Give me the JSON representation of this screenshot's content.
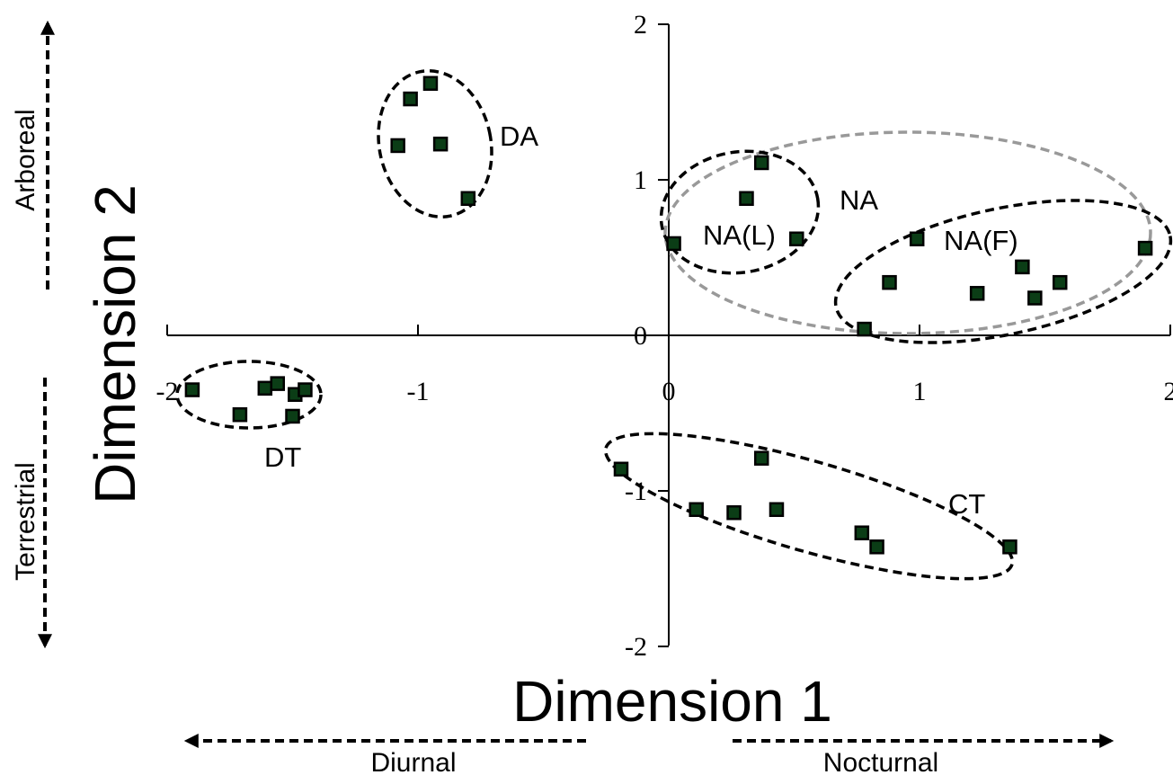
{
  "chart_data": {
    "type": "scatter",
    "title": "",
    "xlabel": "Dimension 1",
    "ylabel": "Dimension 2",
    "xlim": [
      -2,
      2
    ],
    "ylim": [
      -2,
      2
    ],
    "x_ticks": [
      "-2",
      "-1",
      "0",
      "1",
      "2"
    ],
    "y_ticks": [
      "2",
      "1",
      "0",
      "-1",
      "-2"
    ],
    "grid": false,
    "annotations": {
      "x_negative": "Diurnal",
      "x_positive": "Nocturnal",
      "y_positive": "Arboreal",
      "y_negative": "Terrestrial"
    },
    "groups": [
      {
        "label": "DA",
        "dashed_ellipse": "black"
      },
      {
        "label": "NA",
        "dashed_ellipse": "gray"
      },
      {
        "label": "NA(L)",
        "dashed_ellipse": "black"
      },
      {
        "label": "NA(F)",
        "dashed_ellipse": "black"
      },
      {
        "label": "DT",
        "dashed_ellipse": "black"
      },
      {
        "label": "CT",
        "dashed_ellipse": "black"
      }
    ],
    "points": [
      {
        "group": "DA",
        "x": -1.08,
        "y": 1.22
      },
      {
        "group": "DA",
        "x": -1.03,
        "y": 1.52
      },
      {
        "group": "DA",
        "x": -0.95,
        "y": 1.62
      },
      {
        "group": "DA",
        "x": -0.91,
        "y": 1.23
      },
      {
        "group": "DA",
        "x": -0.8,
        "y": 0.88
      },
      {
        "group": "NA(L)",
        "x": 0.02,
        "y": 0.59
      },
      {
        "group": "NA(L)",
        "x": 0.31,
        "y": 0.88
      },
      {
        "group": "NA(L)",
        "x": 0.37,
        "y": 1.11
      },
      {
        "group": "NA(L)",
        "x": 0.51,
        "y": 0.62
      },
      {
        "group": "NA(F)",
        "x": 0.78,
        "y": 0.04
      },
      {
        "group": "NA(F)",
        "x": 0.88,
        "y": 0.34
      },
      {
        "group": "NA(F)",
        "x": 0.99,
        "y": 0.62
      },
      {
        "group": "NA(F)",
        "x": 1.23,
        "y": 0.27
      },
      {
        "group": "NA(F)",
        "x": 1.41,
        "y": 0.44
      },
      {
        "group": "NA(F)",
        "x": 1.46,
        "y": 0.24
      },
      {
        "group": "NA(F)",
        "x": 1.56,
        "y": 0.34
      },
      {
        "group": "NA(F)",
        "x": 1.9,
        "y": 0.56
      },
      {
        "group": "DT",
        "x": -1.9,
        "y": -0.35
      },
      {
        "group": "DT",
        "x": -1.71,
        "y": -0.51
      },
      {
        "group": "DT",
        "x": -1.61,
        "y": -0.34
      },
      {
        "group": "DT",
        "x": -1.56,
        "y": -0.31
      },
      {
        "group": "DT",
        "x": -1.49,
        "y": -0.38
      },
      {
        "group": "DT",
        "x": -1.45,
        "y": -0.35
      },
      {
        "group": "DT",
        "x": -1.5,
        "y": -0.52
      },
      {
        "group": "CT",
        "x": -0.19,
        "y": -0.86
      },
      {
        "group": "CT",
        "x": 0.11,
        "y": -1.12
      },
      {
        "group": "CT",
        "x": 0.26,
        "y": -1.14
      },
      {
        "group": "CT",
        "x": 0.37,
        "y": -0.79
      },
      {
        "group": "CT",
        "x": 0.43,
        "y": -1.12
      },
      {
        "group": "CT",
        "x": 0.77,
        "y": -1.27
      },
      {
        "group": "CT",
        "x": 0.83,
        "y": -1.36
      },
      {
        "group": "CT",
        "x": 1.36,
        "y": -1.36
      }
    ]
  }
}
